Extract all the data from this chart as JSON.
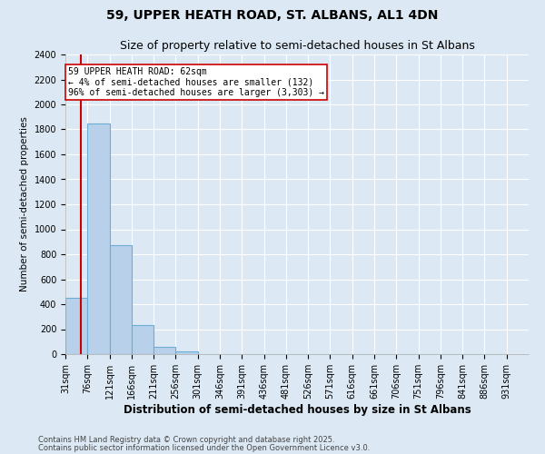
{
  "title": "59, UPPER HEATH ROAD, ST. ALBANS, AL1 4DN",
  "subtitle": "Size of property relative to semi-detached houses in St Albans",
  "xlabel": "Distribution of semi-detached houses by size in St Albans",
  "ylabel": "Number of semi-detached properties",
  "footer1": "Contains HM Land Registry data © Crown copyright and database right 2025.",
  "footer2": "Contains public sector information licensed under the Open Government Licence v3.0.",
  "bins": [
    31,
    76,
    121,
    166,
    211,
    256,
    301,
    346,
    391,
    436,
    481,
    526,
    571,
    616,
    661,
    706,
    751,
    796,
    841,
    886,
    931
  ],
  "values": [
    450,
    1850,
    870,
    230,
    55,
    20,
    0,
    0,
    0,
    0,
    0,
    0,
    0,
    0,
    0,
    0,
    0,
    0,
    0,
    0
  ],
  "bar_color": "#b8d0ea",
  "bar_edge_color": "#6aaed6",
  "red_line_x": 62,
  "red_line_color": "#cc0000",
  "ylim": [
    0,
    2400
  ],
  "yticks": [
    0,
    200,
    400,
    600,
    800,
    1000,
    1200,
    1400,
    1600,
    1800,
    2000,
    2200,
    2400
  ],
  "annotation_text": "59 UPPER HEATH ROAD: 62sqm\n← 4% of semi-detached houses are smaller (132)\n96% of semi-detached houses are larger (3,303) →",
  "bg_color": "#dce9f5",
  "plot_bg_color": "#dce9f5",
  "grid_color": "#ffffff",
  "title_fontsize": 10,
  "subtitle_fontsize": 9,
  "ylabel_fontsize": 7.5,
  "xlabel_fontsize": 8.5,
  "tick_fontsize": 7,
  "annotation_fontsize": 7,
  "footer_fontsize": 6
}
